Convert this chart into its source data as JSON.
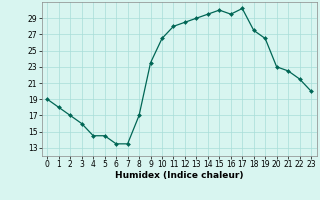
{
  "x": [
    0,
    1,
    2,
    3,
    4,
    5,
    6,
    7,
    8,
    9,
    10,
    11,
    12,
    13,
    14,
    15,
    16,
    17,
    18,
    19,
    20,
    21,
    22,
    23
  ],
  "y": [
    19,
    18,
    17,
    16,
    14.5,
    14.5,
    13.5,
    13.5,
    17,
    23.5,
    26.5,
    28,
    28.5,
    29,
    29.5,
    30.0,
    29.5,
    30.2,
    27.5,
    26.5,
    23,
    22.5,
    21.5,
    20
  ],
  "xlabel": "Humidex (Indice chaleur)",
  "line_color": "#006655",
  "marker_color": "#006655",
  "bg_color": "#d8f5f0",
  "grid_color": "#a8ddd8",
  "xlim": [
    -0.5,
    23.5
  ],
  "ylim": [
    12,
    31
  ],
  "yticks": [
    13,
    15,
    17,
    19,
    21,
    23,
    25,
    27,
    29
  ],
  "xticks": [
    0,
    1,
    2,
    3,
    4,
    5,
    6,
    7,
    8,
    9,
    10,
    11,
    12,
    13,
    14,
    15,
    16,
    17,
    18,
    19,
    20,
    21,
    22,
    23
  ],
  "xlabel_fontsize": 6.5,
  "tick_fontsize": 5.5
}
